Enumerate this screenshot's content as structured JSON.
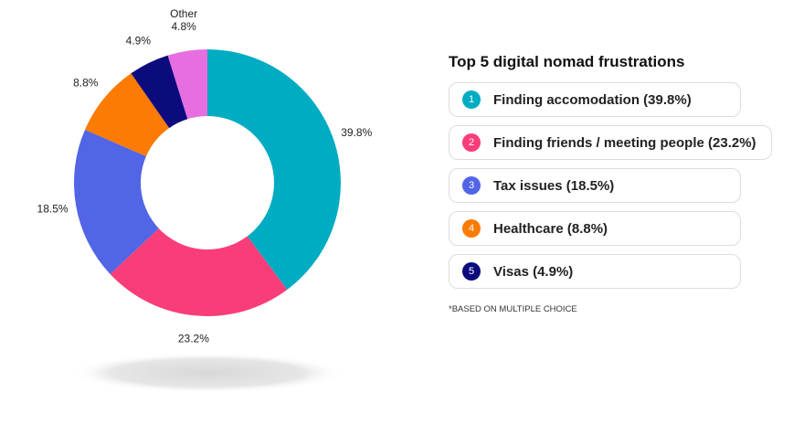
{
  "chart_data": {
    "type": "pie",
    "categories": [
      null,
      null,
      null,
      null,
      null,
      "Other"
    ],
    "values": [
      39.8,
      23.2,
      18.5,
      8.8,
      4.9,
      4.8
    ],
    "value_labels": [
      "39.8%",
      "23.2%",
      "18.5%",
      "8.8%",
      "4.9%",
      "4.8%"
    ],
    "colors": [
      "#00acc1",
      "#f93d78",
      "#5165e6",
      "#fb7b05",
      "#0c0b7e",
      "#e76ee0"
    ],
    "donut": true
  },
  "legend": {
    "title": "Top 5 digital nomad frustrations",
    "items": [
      {
        "number": 1,
        "label": "Finding accomodation (39.8%)"
      },
      {
        "number": 2,
        "label": "Finding friends / meeting people (23.2%)"
      },
      {
        "number": 3,
        "label": "Tax issues (18.5%)"
      },
      {
        "number": 4,
        "label": "Healthcare (8.8%)"
      },
      {
        "number": 5,
        "label": "Visas (4.9%)"
      }
    ]
  },
  "footnote": "*BASED ON MULTIPLE CHOICE"
}
